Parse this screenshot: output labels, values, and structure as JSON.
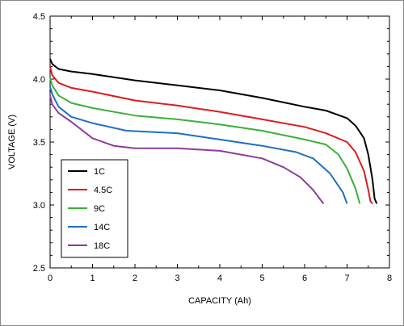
{
  "chart_data": {
    "type": "line",
    "title": "",
    "xlabel": "CAPACITY (Ah)",
    "ylabel": "VOLTAGE (V)",
    "xlim": [
      0,
      8
    ],
    "ylim": [
      2.5,
      4.5
    ],
    "xticks": [
      0,
      1,
      2,
      3,
      4,
      5,
      6,
      7,
      8
    ],
    "yticks": [
      2.5,
      3.0,
      3.5,
      4.0,
      4.5
    ],
    "xtick_labels": [
      "0",
      "1",
      "2",
      "3",
      "4",
      "5",
      "6",
      "7",
      "8"
    ],
    "ytick_labels": [
      "2.5",
      "3.0",
      "3.5",
      "4.0",
      "4.5"
    ],
    "grid": false,
    "legend_position": "bottom-left",
    "series": [
      {
        "name": "1C",
        "color": "#000000",
        "points": [
          [
            0.0,
            4.16
          ],
          [
            0.05,
            4.12
          ],
          [
            0.2,
            4.08
          ],
          [
            0.5,
            4.06
          ],
          [
            1.0,
            4.04
          ],
          [
            2.0,
            3.99
          ],
          [
            3.0,
            3.95
          ],
          [
            4.0,
            3.91
          ],
          [
            5.0,
            3.85
          ],
          [
            6.0,
            3.78
          ],
          [
            6.5,
            3.75
          ],
          [
            7.0,
            3.69
          ],
          [
            7.2,
            3.63
          ],
          [
            7.4,
            3.53
          ],
          [
            7.5,
            3.4
          ],
          [
            7.6,
            3.2
          ],
          [
            7.65,
            3.05
          ],
          [
            7.7,
            3.01
          ]
        ]
      },
      {
        "name": "4.5C",
        "color": "#dd1c1c",
        "points": [
          [
            0.0,
            4.1
          ],
          [
            0.05,
            4.03
          ],
          [
            0.2,
            3.97
          ],
          [
            0.5,
            3.93
          ],
          [
            1.0,
            3.9
          ],
          [
            2.0,
            3.83
          ],
          [
            3.0,
            3.79
          ],
          [
            4.0,
            3.74
          ],
          [
            5.0,
            3.68
          ],
          [
            6.0,
            3.62
          ],
          [
            6.5,
            3.57
          ],
          [
            7.0,
            3.5
          ],
          [
            7.2,
            3.42
          ],
          [
            7.4,
            3.27
          ],
          [
            7.5,
            3.12
          ],
          [
            7.55,
            3.03
          ],
          [
            7.6,
            3.01
          ]
        ]
      },
      {
        "name": "9C",
        "color": "#3ab03a",
        "points": [
          [
            0.0,
            4.01
          ],
          [
            0.05,
            3.95
          ],
          [
            0.2,
            3.87
          ],
          [
            0.5,
            3.81
          ],
          [
            1.0,
            3.77
          ],
          [
            2.0,
            3.71
          ],
          [
            3.0,
            3.68
          ],
          [
            4.0,
            3.64
          ],
          [
            5.0,
            3.59
          ],
          [
            6.0,
            3.52
          ],
          [
            6.5,
            3.48
          ],
          [
            6.8,
            3.4
          ],
          [
            7.0,
            3.29
          ],
          [
            7.2,
            3.13
          ],
          [
            7.3,
            3.01
          ]
        ]
      },
      {
        "name": "14C",
        "color": "#1d6fc4",
        "points": [
          [
            0.0,
            3.94
          ],
          [
            0.05,
            3.88
          ],
          [
            0.2,
            3.78
          ],
          [
            0.5,
            3.7
          ],
          [
            1.0,
            3.65
          ],
          [
            1.8,
            3.59
          ],
          [
            3.0,
            3.57
          ],
          [
            4.0,
            3.52
          ],
          [
            5.0,
            3.47
          ],
          [
            5.8,
            3.42
          ],
          [
            6.2,
            3.37
          ],
          [
            6.6,
            3.25
          ],
          [
            6.9,
            3.1
          ],
          [
            7.0,
            3.01
          ]
        ]
      },
      {
        "name": "18C",
        "color": "#8e3a9e",
        "points": [
          [
            0.0,
            3.87
          ],
          [
            0.05,
            3.8
          ],
          [
            0.2,
            3.73
          ],
          [
            0.5,
            3.66
          ],
          [
            1.0,
            3.53
          ],
          [
            1.5,
            3.47
          ],
          [
            2.0,
            3.45
          ],
          [
            3.0,
            3.45
          ],
          [
            4.0,
            3.43
          ],
          [
            5.0,
            3.37
          ],
          [
            5.5,
            3.3
          ],
          [
            5.9,
            3.22
          ],
          [
            6.2,
            3.12
          ],
          [
            6.4,
            3.03
          ],
          [
            6.45,
            3.01
          ]
        ]
      }
    ]
  }
}
